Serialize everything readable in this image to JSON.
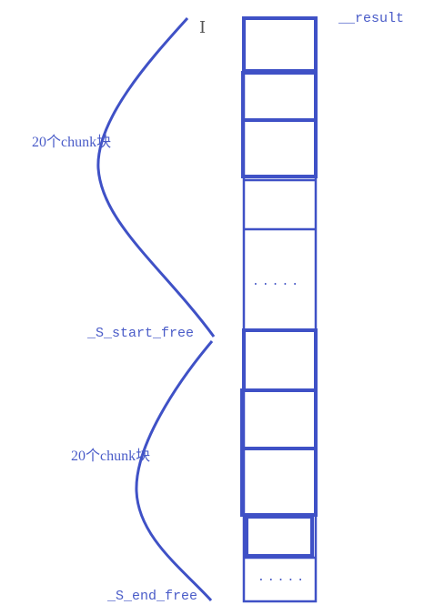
{
  "labels": {
    "result": "__result",
    "chunks_top": "20个chunk块",
    "start_free": "_S_start_free",
    "chunks_bottom": "20个chunk块",
    "end_free": "_S_end_free"
  },
  "blocks": {
    "ellipsis_upper": ".....",
    "ellipsis_lower": "....."
  },
  "icons": {
    "text_cursor": "I"
  },
  "colors": {
    "stroke": "#3f51c6",
    "label": "#4a5cc8"
  }
}
